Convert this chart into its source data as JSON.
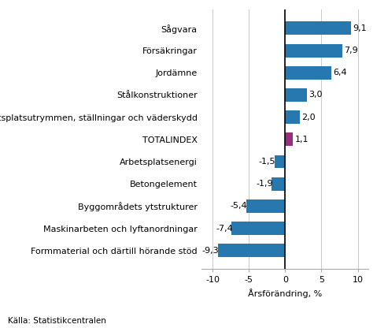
{
  "categories": [
    "Formmaterial och därtill hörande stöd",
    "Maskinarbeten och lyftanordningar",
    "Byggområdets ytstrukturer",
    "Betongelement",
    "Arbetsplatsenergi",
    "TOTALINDEX",
    "Arbetsplatsutrymmen, ställningar och väderskydd",
    "Stålkonstruktioner",
    "Jordämne",
    "Försäkringar",
    "Sågvara"
  ],
  "values": [
    -9.3,
    -7.4,
    -5.4,
    -1.9,
    -1.5,
    1.1,
    2.0,
    3.0,
    6.4,
    7.9,
    9.1
  ],
  "bar_colors": [
    "#2878b0",
    "#2878b0",
    "#2878b0",
    "#2878b0",
    "#2878b0",
    "#9b2d7f",
    "#2878b0",
    "#2878b0",
    "#2878b0",
    "#2878b0",
    "#2878b0"
  ],
  "xlabel": "Årsförändring, %",
  "xlim": [
    -11.5,
    11.5
  ],
  "xticks": [
    -10,
    -5,
    0,
    5,
    10
  ],
  "value_labels": [
    "-9,3",
    "-7,4",
    "-5,4",
    "-1,9",
    "-1,5",
    "1,1",
    "2,0",
    "3,0",
    "6,4",
    "7,9",
    "9,1"
  ],
  "source": "Källa: Statistikcentralen",
  "grid_color": "#cccccc",
  "bar_height": 0.6,
  "label_fontsize": 8.0,
  "tick_fontsize": 8.0
}
